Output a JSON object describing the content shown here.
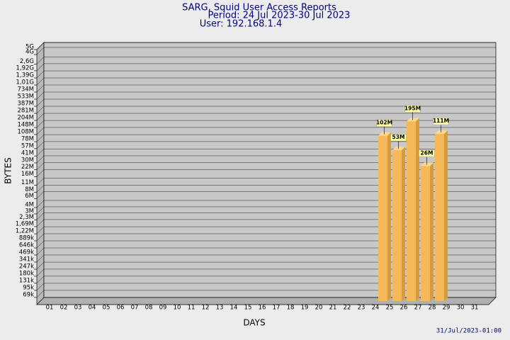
{
  "chart_data": {
    "type": "bar",
    "title": "SARG, Squid User Access Reports",
    "subtitle": [
      "Period: 24 Jul 2023-30 Jul 2023",
      "User: 192.168.1.4"
    ],
    "x_label": "DAYS",
    "y_label": "BYTES",
    "footer": "31/Jul/2023-01:00",
    "categories": [
      "01",
      "02",
      "03",
      "04",
      "05",
      "06",
      "07",
      "08",
      "09",
      "10",
      "11",
      "12",
      "13",
      "14",
      "15",
      "16",
      "17",
      "18",
      "19",
      "20",
      "21",
      "22",
      "23",
      "24",
      "25",
      "26",
      "27",
      "28",
      "29",
      "30",
      "31"
    ],
    "values": [
      null,
      null,
      null,
      null,
      null,
      null,
      null,
      null,
      null,
      null,
      null,
      null,
      null,
      null,
      null,
      null,
      null,
      null,
      null,
      null,
      null,
      null,
      null,
      102000000,
      53000000,
      195000000,
      26000000,
      111000000,
      null,
      null,
      null
    ],
    "value_labels": [
      null,
      null,
      null,
      null,
      null,
      null,
      null,
      null,
      null,
      null,
      null,
      null,
      null,
      null,
      null,
      null,
      null,
      null,
      null,
      null,
      null,
      null,
      null,
      "102M",
      "53M",
      "195M",
      "26M",
      "111M",
      null,
      null,
      null
    ],
    "color": "#f5b95a",
    "log_scale": true,
    "grid": true,
    "ylim": [
      50000,
      5000000000
    ],
    "yticks": [
      {
        "value": 69000,
        "label": "69k"
      },
      {
        "value": 95000,
        "label": "95k"
      },
      {
        "value": 131000,
        "label": "131k"
      },
      {
        "value": 180000,
        "label": "180k"
      },
      {
        "value": 247000,
        "label": "247k"
      },
      {
        "value": 341000,
        "label": "341k"
      },
      {
        "value": 469000,
        "label": "469k"
      },
      {
        "value": 646000,
        "label": "646k"
      },
      {
        "value": 889000,
        "label": "889k"
      },
      {
        "value": 1220000,
        "label": "1,22M"
      },
      {
        "value": 1690000,
        "label": "1,69M"
      },
      {
        "value": 2300000,
        "label": "2,3M"
      },
      {
        "value": 3000000,
        "label": "3M"
      },
      {
        "value": 4000000,
        "label": "4M"
      },
      {
        "value": 6000000,
        "label": "6M"
      },
      {
        "value": 8000000,
        "label": "8M"
      },
      {
        "value": 11000000,
        "label": "11M"
      },
      {
        "value": 16000000,
        "label": "16M"
      },
      {
        "value": 22000000,
        "label": "22M"
      },
      {
        "value": 30000000,
        "label": "30M"
      },
      {
        "value": 41000000,
        "label": "41M"
      },
      {
        "value": 57000000,
        "label": "57M"
      },
      {
        "value": 78000000,
        "label": "78M"
      },
      {
        "value": 108000000,
        "label": "108M"
      },
      {
        "value": 148000000,
        "label": "148M"
      },
      {
        "value": 204000000,
        "label": "204M"
      },
      {
        "value": 281000000,
        "label": "281M"
      },
      {
        "value": 387000000,
        "label": "387M"
      },
      {
        "value": 533000000,
        "label": "533M"
      },
      {
        "value": 734000000,
        "label": "734M"
      },
      {
        "value": 1010000000,
        "label": "1,01G"
      },
      {
        "value": 1390000000,
        "label": "1,39G"
      },
      {
        "value": 1920000000,
        "label": "1,92G"
      },
      {
        "value": 2600000000,
        "label": "2,6G"
      },
      {
        "value": 4000000000,
        "label": "4G"
      },
      {
        "value": 5000000000,
        "label": "5G"
      }
    ]
  }
}
